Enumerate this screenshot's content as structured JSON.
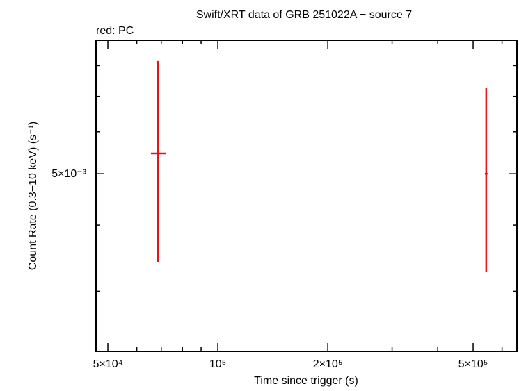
{
  "chart_data": {
    "type": "errorbar",
    "title": "Swift/XRT data of GRB 251022A − source 7",
    "subtitle": "red: PC",
    "x_label": "Time since trigger (s)",
    "y_label": "Count Rate (0.3−10 keV) (s⁻¹)",
    "x_log": true,
    "y_log": true,
    "xlim": [
      46400,
      659000
    ],
    "ylim": [
      0.00231,
      0.00893
    ],
    "xticks": [
      {
        "value": 50000,
        "label": "5×10⁴"
      },
      {
        "value": 100000,
        "label": "10⁵"
      },
      {
        "value": 200000,
        "label": "2×10⁵"
      },
      {
        "value": 500000,
        "label": "5×10⁵"
      }
    ],
    "xminor_ticks": [
      60000,
      70000,
      80000,
      90000,
      300000,
      400000,
      600000
    ],
    "yticks": [
      {
        "value": 0.005,
        "label": "5×10⁻³"
      }
    ],
    "yminor_ticks": [
      0.003,
      0.004,
      0.006,
      0.007,
      0.008
    ],
    "series": [
      {
        "name": "PC",
        "color": "#e8141c",
        "x": [
          68600,
          543000
        ],
        "xerr_minus": [
          3000,
          4800
        ],
        "xerr_plus": [
          3400,
          4800
        ],
        "values": [
          0.00546,
          0.005
        ],
        "yerr_minus": [
          0.00205,
          0.00174
        ],
        "yerr_plus": [
          0.0027,
          0.00225
        ]
      }
    ]
  }
}
